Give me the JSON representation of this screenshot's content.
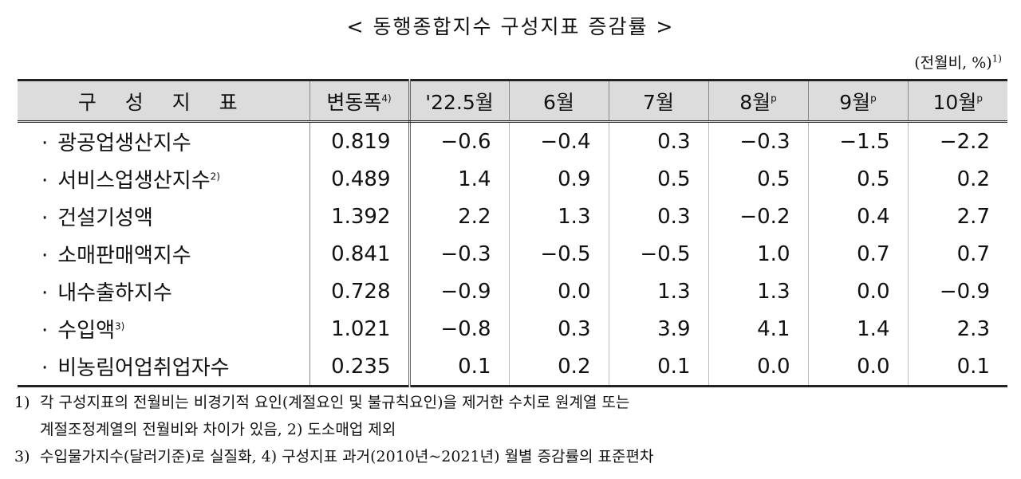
{
  "title": "< 동행종합지수 구성지표 증감률 >",
  "unit": {
    "text": "(전월비, %)",
    "sup": "1)"
  },
  "headers": {
    "indicator": "구 성 지 표",
    "volatility": "변동폭",
    "volatility_sup": "4)",
    "months": [
      {
        "label": "'22.5월",
        "sup": ""
      },
      {
        "label": "6월",
        "sup": ""
      },
      {
        "label": "7월",
        "sup": ""
      },
      {
        "label": "8월",
        "sup": "p"
      },
      {
        "label": "9월",
        "sup": "p"
      },
      {
        "label": "10월",
        "sup": "p"
      }
    ]
  },
  "rows": [
    {
      "bullet": "·",
      "name": "광공업생산지수",
      "sup": "",
      "vol": "0.819",
      "vals": [
        "−0.6",
        "−0.4",
        "0.3",
        "−0.3",
        "−1.5",
        "−2.2"
      ]
    },
    {
      "bullet": "·",
      "name": "서비스업생산지수",
      "sup": "2)",
      "vol": "0.489",
      "vals": [
        "1.4",
        "0.9",
        "0.5",
        "0.5",
        "0.5",
        "0.2"
      ]
    },
    {
      "bullet": "·",
      "name": "건설기성액",
      "sup": "",
      "vol": "1.392",
      "vals": [
        "2.2",
        "1.3",
        "0.3",
        "−0.2",
        "0.4",
        "2.7"
      ]
    },
    {
      "bullet": "·",
      "name": "소매판매액지수",
      "sup": "",
      "vol": "0.841",
      "vals": [
        "−0.3",
        "−0.5",
        "−0.5",
        "1.0",
        "0.7",
        "0.7"
      ]
    },
    {
      "bullet": "·",
      "name": "내수출하지수",
      "sup": "",
      "vol": "0.728",
      "vals": [
        "−0.9",
        "0.0",
        "1.3",
        "1.3",
        "0.0",
        "−0.9"
      ]
    },
    {
      "bullet": "·",
      "name": "수입액",
      "sup": "3)",
      "vol": "1.021",
      "vals": [
        "−0.8",
        "0.3",
        "3.9",
        "4.1",
        "1.4",
        "2.3"
      ]
    },
    {
      "bullet": "·",
      "name": "비농림어업취업자수",
      "sup": "",
      "vol": "0.235",
      "vals": [
        "0.1",
        "0.2",
        "0.1",
        "0.0",
        "0.0",
        "0.1"
      ]
    }
  ],
  "notes": {
    "line1_num": "1)",
    "line1": "각 구성지표의 전월비는 비경기적 요인(계절요인 및 불규칙요인)을 제거한 수치로 원계열 또는",
    "line2": "계절조정계열의 전월비와 차이가 있음, 2) 도소매업 제외",
    "line3_num": "3)",
    "line3": "수입물가지수(달러기준)로 실질화, 4) 구성지표 과거(2010년~2021년) 월별 증감률의 표준편차"
  }
}
